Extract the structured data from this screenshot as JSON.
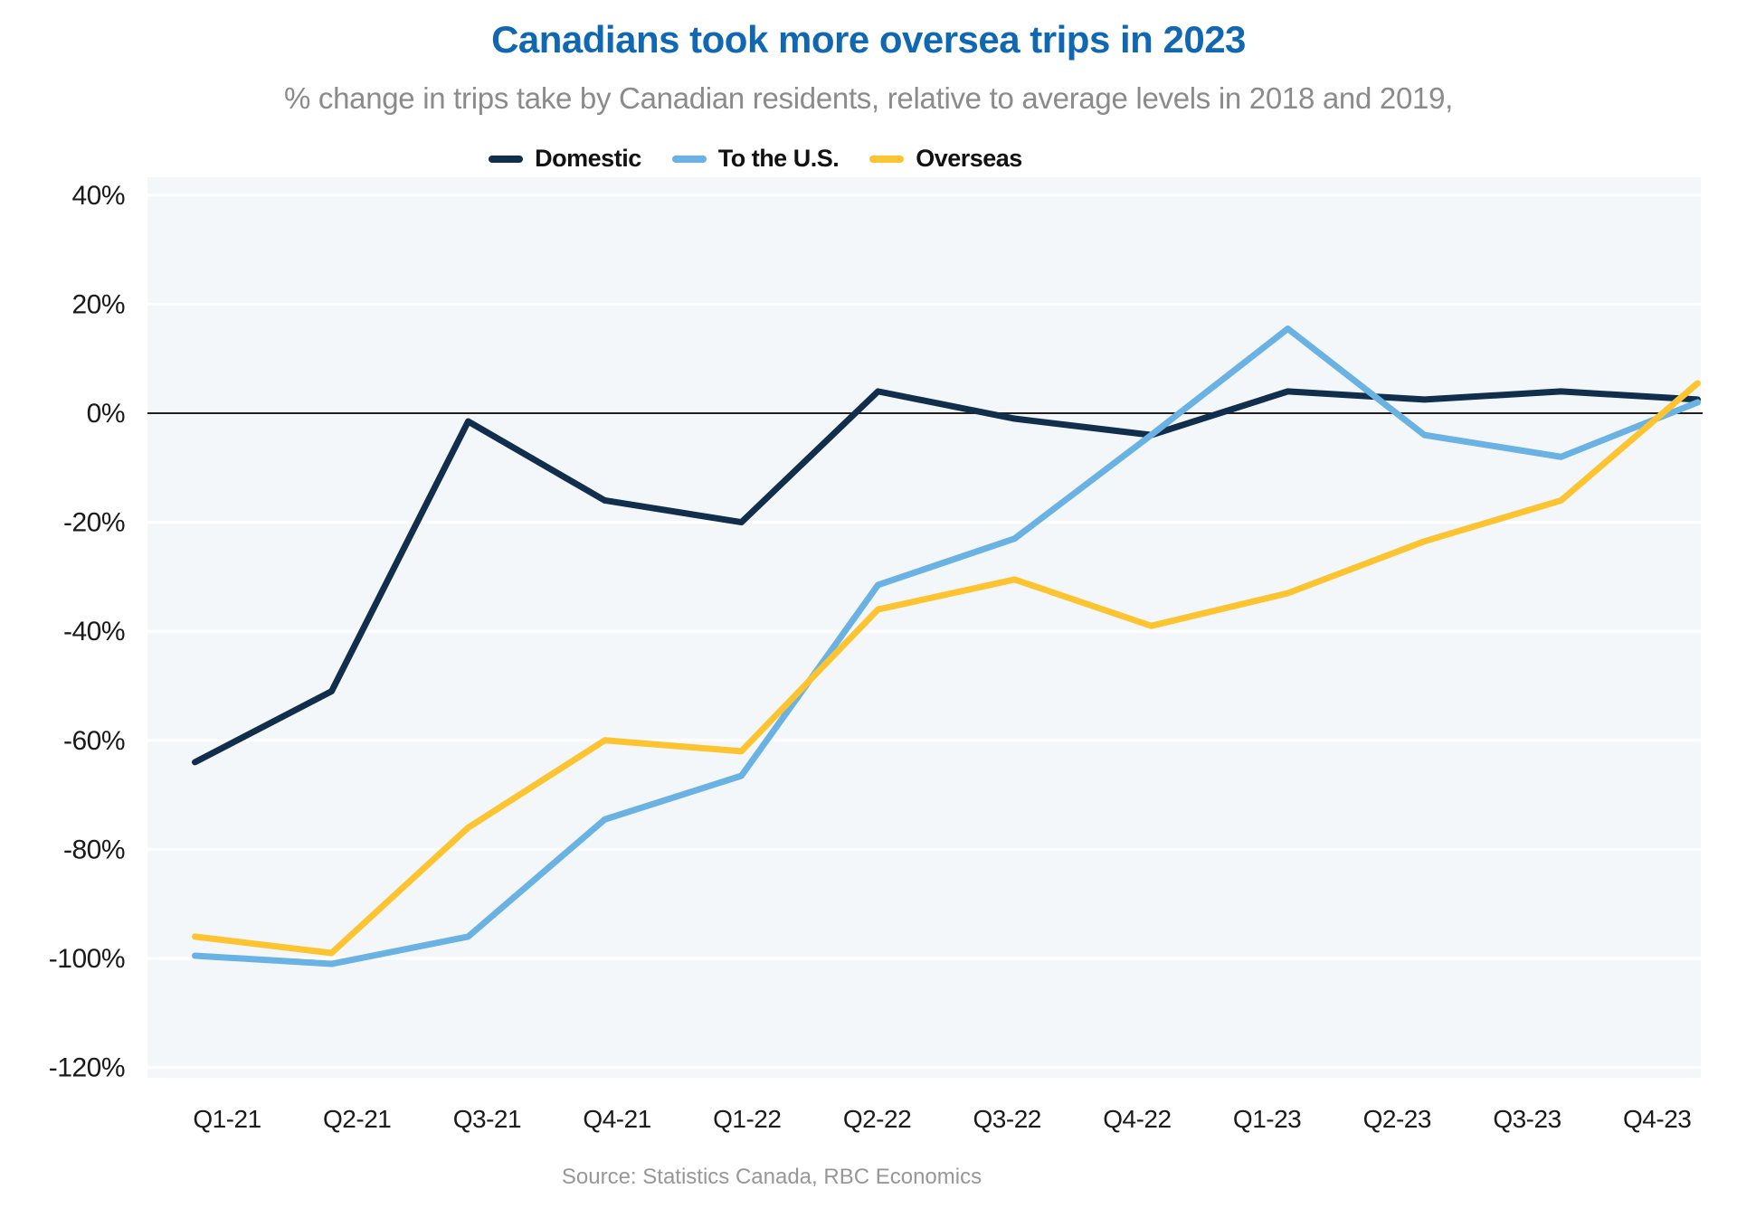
{
  "header": {
    "title": "Canadians took more oversea trips in 2023",
    "subtitle": "% change in trips take by Canadian residents, relative to average levels in 2018 and 2019,"
  },
  "source": "Source: Statistics Canada, RBC Economics",
  "colors": {
    "title_blue": "#1068b2",
    "subtitle_gray": "#8b8b8b",
    "source_gray": "#979797",
    "axis_label": "#1a1a1a",
    "plot_background": "#f4f7fa",
    "gridline": "#ffffff",
    "zero_line": "#1f1f1f",
    "domestic": "#112e4d",
    "to_the_us": "#69b2e3",
    "overseas": "#fdc432"
  },
  "chart_data": {
    "type": "line",
    "title": "Canadians took more oversea trips in 2023",
    "subtitle": "% change in trips take by Canadian residents, relative to average levels in 2018 and 2019,",
    "categories": [
      "Q1-21",
      "Q2-21",
      "Q3-21",
      "Q4-21",
      "Q1-22",
      "Q2-22",
      "Q3-22",
      "Q4-22",
      "Q1-23",
      "Q2-23",
      "Q3-23",
      "Q4-23"
    ],
    "series": [
      {
        "name": "Domestic",
        "color": "#112e4d",
        "values": [
          -64,
          -51,
          -1.5,
          -16,
          -20,
          4,
          -1,
          -4,
          4,
          2.5,
          4,
          2.5
        ]
      },
      {
        "name": "To the U.S.",
        "color": "#69b2e3",
        "values": [
          -99.5,
          -101,
          -96,
          -74.5,
          -66.5,
          -31.5,
          -23,
          -4,
          15.5,
          -4,
          -8,
          2
        ]
      },
      {
        "name": "Overseas",
        "color": "#fdc432",
        "values": [
          -96,
          -99,
          -76,
          -60,
          -62,
          -36,
          -30.5,
          -39,
          -33,
          -23.5,
          -16,
          5.5
        ]
      }
    ],
    "xlabel": "",
    "ylabel": "",
    "ylim": [
      -120,
      40
    ],
    "ytick_step": 20,
    "ytick_suffix": "%",
    "grid": true,
    "zero_line": true,
    "legend_position": "top-center"
  }
}
